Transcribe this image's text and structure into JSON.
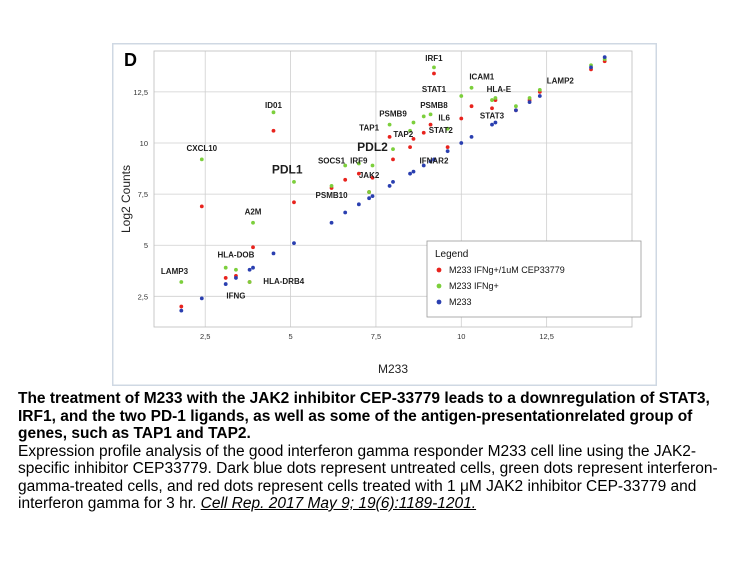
{
  "panel_label": "D",
  "caption": {
    "title": "The treatment of M233 with the JAK2 inhibitor CEP-33779 leads to a downregulation of STAT3, IRF1, and the two PD-1 ligands, as well as some of the antigen-presentationrelated group of genes, such as TAP1 and TAP2.",
    "body": "Expression profile analysis of the good interferon gamma responder M233 cell line using the JAK2-specific inhibitor CEP33779. Dark blue dots represent untreated cells, green dots represent interferon-gamma-treated cells, and red dots represent cells treated with 1 μM JAK2 inhibitor CEP-33779 and interferon gamma for 3 hr.",
    "citation": "Cell Rep. 2017 May 9; 19(6):1189-1201."
  },
  "colors": {
    "red": "#e8231d",
    "green": "#7ccf3c",
    "blue": "#2a3fb0",
    "frame": "#cfd8e3",
    "grid": "#cfcfcf"
  },
  "chart_data": {
    "type": "scatter",
    "xlabel": "M233",
    "ylabel": "Log2 Counts",
    "xlim": [
      1,
      15
    ],
    "ylim": [
      1,
      14.5
    ],
    "xticks": [
      2.5,
      5,
      7.5,
      10,
      12.5
    ],
    "xtick_labels": [
      "2,5",
      "5",
      "7,5",
      "10",
      "12,5"
    ],
    "yticks": [
      2.5,
      5,
      7.5,
      10,
      12.5
    ],
    "ytick_labels": [
      "2,5",
      "5",
      "7,5",
      "10",
      "12,5"
    ],
    "legend": {
      "title": "Legend",
      "position": "bottom-right",
      "entries": [
        {
          "label": "M233 IFNg+/1uM CEP33779",
          "color_key": "red"
        },
        {
          "label": "M233 IFNg+",
          "color_key": "green"
        },
        {
          "label": "M233",
          "color_key": "blue"
        }
      ]
    },
    "series": [
      {
        "name": "M233 IFNg+/1uM CEP33779",
        "color_key": "red",
        "points": [
          [
            1.8,
            2.0
          ],
          [
            2.4,
            6.9
          ],
          [
            3.1,
            3.4
          ],
          [
            3.4,
            3.5
          ],
          [
            3.8,
            3.2
          ],
          [
            3.9,
            4.9
          ],
          [
            4.5,
            10.6
          ],
          [
            5.1,
            7.1
          ],
          [
            6.2,
            7.8
          ],
          [
            6.6,
            8.2
          ],
          [
            7.0,
            8.5
          ],
          [
            7.3,
            7.6
          ],
          [
            7.4,
            8.3
          ],
          [
            7.9,
            10.3
          ],
          [
            8.0,
            9.2
          ],
          [
            8.5,
            9.8
          ],
          [
            8.6,
            10.2
          ],
          [
            8.9,
            10.5
          ],
          [
            9.1,
            10.9
          ],
          [
            9.2,
            13.4
          ],
          [
            9.6,
            9.8
          ],
          [
            10.0,
            11.2
          ],
          [
            10.3,
            11.8
          ],
          [
            10.9,
            11.7
          ],
          [
            11.0,
            12.1
          ],
          [
            11.6,
            11.6
          ],
          [
            12.0,
            12.1
          ],
          [
            12.3,
            12.5
          ],
          [
            13.8,
            13.6
          ],
          [
            14.2,
            14.0
          ]
        ]
      },
      {
        "name": "M233 IFNg+",
        "color_key": "green",
        "points": [
          [
            1.8,
            3.2
          ],
          [
            2.4,
            9.2
          ],
          [
            3.1,
            3.9
          ],
          [
            3.4,
            3.8
          ],
          [
            3.8,
            3.2
          ],
          [
            3.9,
            6.1
          ],
          [
            4.5,
            11.5
          ],
          [
            5.1,
            8.1
          ],
          [
            6.2,
            7.9
          ],
          [
            6.6,
            8.9
          ],
          [
            7.0,
            9.0
          ],
          [
            7.3,
            7.6
          ],
          [
            7.4,
            8.9
          ],
          [
            7.9,
            10.9
          ],
          [
            8.0,
            9.7
          ],
          [
            8.5,
            10.6
          ],
          [
            8.6,
            11.0
          ],
          [
            8.9,
            11.3
          ],
          [
            9.1,
            11.4
          ],
          [
            9.2,
            13.7
          ],
          [
            9.6,
            10.7
          ],
          [
            10.0,
            12.3
          ],
          [
            10.3,
            12.7
          ],
          [
            10.9,
            12.1
          ],
          [
            11.0,
            12.2
          ],
          [
            11.6,
            11.8
          ],
          [
            12.0,
            12.2
          ],
          [
            12.3,
            12.6
          ],
          [
            13.8,
            13.8
          ],
          [
            14.2,
            14.1
          ]
        ]
      },
      {
        "name": "M233",
        "color_key": "blue",
        "points": [
          [
            1.8,
            1.8
          ],
          [
            2.4,
            2.4
          ],
          [
            3.1,
            3.1
          ],
          [
            3.4,
            3.4
          ],
          [
            3.8,
            3.8
          ],
          [
            3.9,
            3.9
          ],
          [
            4.5,
            4.6
          ],
          [
            5.1,
            5.1
          ],
          [
            6.2,
            6.1
          ],
          [
            6.6,
            6.6
          ],
          [
            7.0,
            7.0
          ],
          [
            7.3,
            7.3
          ],
          [
            7.4,
            7.4
          ],
          [
            7.9,
            7.9
          ],
          [
            8.0,
            8.1
          ],
          [
            8.5,
            8.5
          ],
          [
            8.6,
            8.6
          ],
          [
            8.9,
            8.9
          ],
          [
            9.1,
            9.1
          ],
          [
            9.2,
            9.2
          ],
          [
            9.6,
            9.6
          ],
          [
            10.0,
            10.0
          ],
          [
            10.3,
            10.3
          ],
          [
            10.9,
            10.9
          ],
          [
            11.0,
            11.0
          ],
          [
            11.6,
            11.6
          ],
          [
            12.0,
            12.0
          ],
          [
            12.3,
            12.3
          ],
          [
            13.8,
            13.7
          ],
          [
            14.2,
            14.2
          ]
        ]
      }
    ],
    "annotations": [
      {
        "text": "IRF1",
        "x": 9.2,
        "y": 14.0,
        "bold": false
      },
      {
        "text": "ICAM1",
        "x": 10.6,
        "y": 13.1,
        "bold": false
      },
      {
        "text": "LAMP2",
        "x": 12.9,
        "y": 12.9,
        "bold": false
      },
      {
        "text": "STAT1",
        "x": 9.2,
        "y": 12.5,
        "bold": false
      },
      {
        "text": "HLA-E",
        "x": 11.1,
        "y": 12.5,
        "bold": false
      },
      {
        "text": "PSMB8",
        "x": 9.2,
        "y": 11.7,
        "bold": false
      },
      {
        "text": "ID01",
        "x": 4.5,
        "y": 11.7,
        "bold": false
      },
      {
        "text": "PSMB9",
        "x": 8.0,
        "y": 11.3,
        "bold": false
      },
      {
        "text": "STAT3",
        "x": 10.9,
        "y": 11.2,
        "bold": false
      },
      {
        "text": "IL6",
        "x": 9.5,
        "y": 11.1,
        "bold": false
      },
      {
        "text": "TAP1",
        "x": 7.3,
        "y": 10.6,
        "bold": false
      },
      {
        "text": "STAT2",
        "x": 9.4,
        "y": 10.5,
        "bold": false
      },
      {
        "text": "TAP2",
        "x": 8.3,
        "y": 10.3,
        "bold": false
      },
      {
        "text": "PDL2",
        "x": 7.4,
        "y": 9.6,
        "bold": true
      },
      {
        "text": "CXCL10",
        "x": 2.4,
        "y": 9.6,
        "bold": false
      },
      {
        "text": "SOCS1",
        "x": 6.2,
        "y": 9.0,
        "bold": false
      },
      {
        "text": "IRF9",
        "x": 7.0,
        "y": 9.0,
        "bold": false
      },
      {
        "text": "IFNAR2",
        "x": 9.2,
        "y": 9.0,
        "bold": false
      },
      {
        "text": "PDL1",
        "x": 4.9,
        "y": 8.5,
        "bold": true
      },
      {
        "text": "JAK2",
        "x": 7.3,
        "y": 8.3,
        "bold": false
      },
      {
        "text": "PSMB10",
        "x": 6.2,
        "y": 7.3,
        "bold": false
      },
      {
        "text": "A2M",
        "x": 3.9,
        "y": 6.5,
        "bold": false
      },
      {
        "text": "HLA-DOB",
        "x": 3.4,
        "y": 4.4,
        "bold": false
      },
      {
        "text": "LAMP3",
        "x": 1.6,
        "y": 3.6,
        "bold": false
      },
      {
        "text": "HLA-DRB4",
        "x": 4.8,
        "y": 3.1,
        "bold": false
      },
      {
        "text": "IFNG",
        "x": 3.4,
        "y": 2.4,
        "bold": false
      }
    ]
  }
}
